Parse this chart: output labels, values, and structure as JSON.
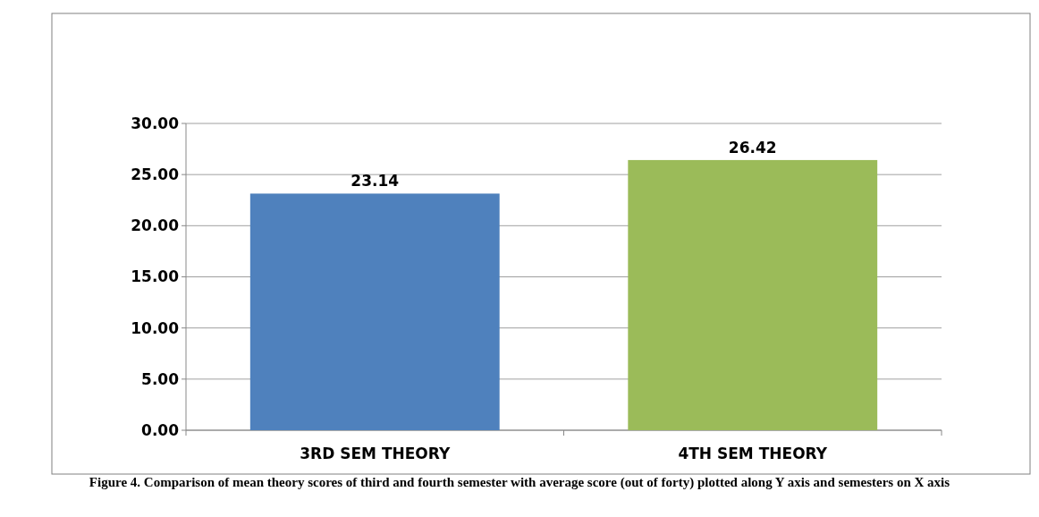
{
  "chart_data": {
    "type": "bar",
    "categories": [
      "3RD SEM THEORY",
      "4TH SEM THEORY"
    ],
    "values": [
      23.14,
      26.42
    ],
    "colors": [
      "#4f81bd",
      "#9bbb59"
    ],
    "ylim": [
      0,
      30
    ],
    "yticks": [
      {
        "value": 0,
        "label": "0.00"
      },
      {
        "value": 5,
        "label": "5.00"
      },
      {
        "value": 10,
        "label": "10.00"
      },
      {
        "value": 15,
        "label": "15.00"
      },
      {
        "value": 20,
        "label": "20.00"
      },
      {
        "value": 25,
        "label": "25.00"
      },
      {
        "value": 30,
        "label": "30.00"
      }
    ],
    "grid": "y",
    "data_labels": true,
    "annotations": [
      "Figure 4. Comparison of mean theory scores of third and fourth semester with average score (out of forty) plotted along Y axis and semesters on X axis"
    ]
  }
}
